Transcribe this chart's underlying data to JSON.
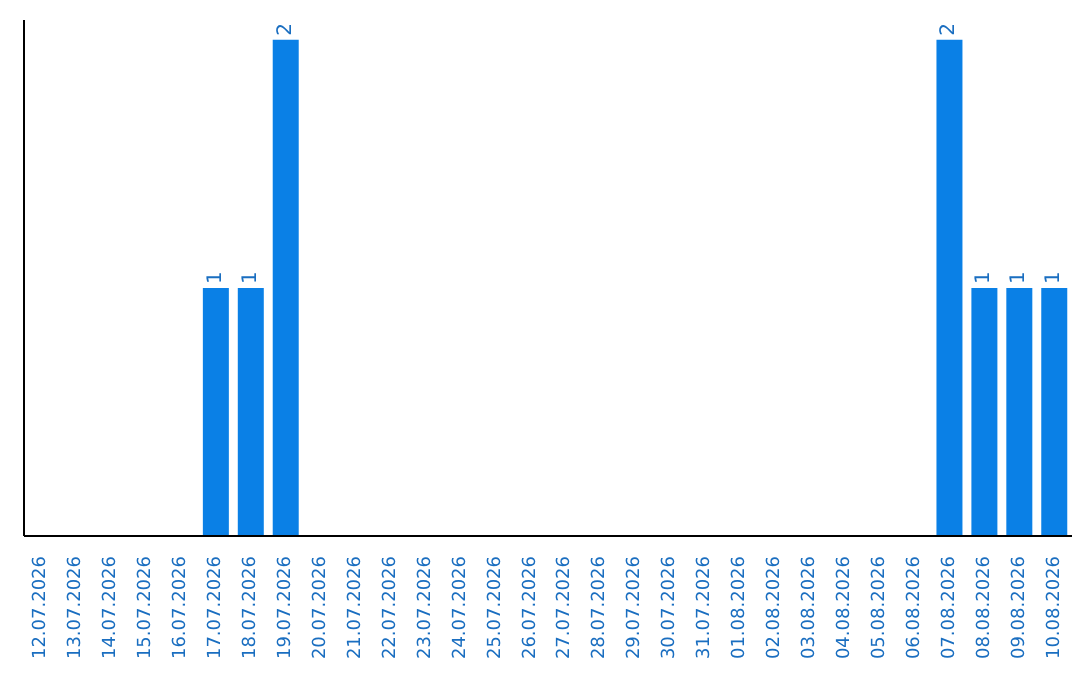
{
  "chart_data": {
    "type": "bar",
    "categories": [
      "12.07.2026",
      "13.07.2026",
      "14.07.2026",
      "15.07.2026",
      "16.07.2026",
      "17.07.2026",
      "18.07.2026",
      "19.07.2026",
      "20.07.2026",
      "21.07.2026",
      "22.07.2026",
      "23.07.2026",
      "24.07.2026",
      "25.07.2026",
      "26.07.2026",
      "27.07.2026",
      "28.07.2026",
      "29.07.2026",
      "30.07.2026",
      "31.07.2026",
      "01.08.2026",
      "02.08.2026",
      "03.08.2026",
      "04.08.2026",
      "05.08.2026",
      "06.08.2026",
      "07.08.2026",
      "08.08.2026",
      "09.08.2026",
      "10.08.2026"
    ],
    "values": [
      0,
      0,
      0,
      0,
      0,
      1,
      1,
      2,
      0,
      0,
      0,
      0,
      0,
      0,
      0,
      0,
      0,
      0,
      0,
      0,
      0,
      0,
      0,
      0,
      0,
      0,
      2,
      1,
      1,
      1
    ],
    "value_labels": [
      null,
      null,
      null,
      null,
      null,
      "1",
      "1",
      "2",
      null,
      null,
      null,
      null,
      null,
      null,
      null,
      null,
      null,
      null,
      null,
      null,
      null,
      null,
      null,
      null,
      null,
      null,
      "2",
      "1",
      "1",
      "1"
    ],
    "color": "#0a80e6",
    "ylim": [
      0,
      2.08
    ],
    "grid": false,
    "tick_labels": "x"
  }
}
